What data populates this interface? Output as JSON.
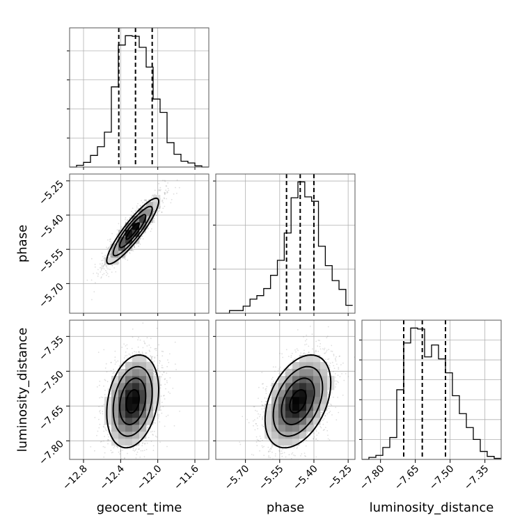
{
  "chart_data": {
    "type": "corner",
    "parameters": [
      "geocent_time",
      "phase",
      "luminosity_distance"
    ],
    "axis_labels": {
      "geocent_time": "geocent_time",
      "phase": "phase",
      "luminosity_distance": "luminosity_distance"
    },
    "ranges": {
      "geocent_time": [
        -12.95,
        -11.45
      ],
      "phase": [
        -5.83,
        -5.22
      ],
      "luminosity_distance": [
        -7.88,
        -7.28
      ]
    },
    "ticks": {
      "geocent_time": [
        -12.8,
        -12.4,
        -12.0,
        -11.6
      ],
      "phase": [
        -5.7,
        -5.55,
        -5.4,
        -5.25
      ],
      "luminosity_distance": [
        -7.8,
        -7.65,
        -7.5,
        -7.35
      ]
    },
    "tick_labels": {
      "geocent_time": [
        "−12.8",
        "−12.4",
        "−12.0",
        "−11.6"
      ],
      "phase": [
        "−5.70",
        "−5.55",
        "−5.40",
        "−5.25"
      ],
      "luminosity_distance": [
        "−7.80",
        "−7.65",
        "−7.50",
        "−7.35"
      ]
    },
    "quantiles": {
      "geocent_time": [
        -12.42,
        -12.24,
        -12.06
      ],
      "phase": [
        -5.52,
        -5.46,
        -5.4
      ],
      "luminosity_distance": [
        -7.7,
        -7.62,
        -7.52
      ]
    },
    "histograms": {
      "geocent_time": {
        "bins": [
          -12.95,
          -12.875,
          -12.8,
          -12.725,
          -12.65,
          -12.575,
          -12.5,
          -12.425,
          -12.35,
          -12.275,
          -12.2,
          -12.125,
          -12.05,
          -11.975,
          -11.9,
          -11.825,
          -11.75,
          -11.675,
          -11.6,
          -11.525,
          -11.45
        ],
        "counts": [
          0,
          3,
          8,
          20,
          35,
          60,
          138,
          210,
          226,
          225,
          206,
          172,
          117,
          94,
          42,
          22,
          10,
          7,
          2,
          0
        ]
      },
      "phase": {
        "bins": [
          -5.83,
          -5.8,
          -5.77,
          -5.74,
          -5.71,
          -5.68,
          -5.65,
          -5.62,
          -5.59,
          -5.56,
          -5.53,
          -5.5,
          -5.47,
          -5.44,
          -5.41,
          -5.38,
          -5.35,
          -5.32,
          -5.29,
          -5.26,
          -5.23
        ],
        "counts": [
          0,
          0,
          3,
          3,
          8,
          16,
          20,
          28,
          43,
          60,
          91,
          131,
          149,
          132,
          127,
          76,
          54,
          37,
          27,
          9
        ]
      },
      "luminosity_distance": {
        "bins": [
          -7.88,
          -7.85,
          -7.82,
          -7.79,
          -7.76,
          -7.73,
          -7.7,
          -7.67,
          -7.64,
          -7.61,
          -7.58,
          -7.55,
          -7.52,
          -7.49,
          -7.46,
          -7.43,
          -7.4,
          -7.37,
          -7.34,
          -7.31,
          -7.28
        ],
        "counts": [
          0,
          2,
          4,
          12,
          22,
          70,
          117,
          132,
          131,
          103,
          115,
          101,
          87,
          64,
          46,
          32,
          20,
          8,
          3,
          1
        ]
      }
    },
    "joint": [
      {
        "x": "geocent_time",
        "y": "phase",
        "center": [
          -12.27,
          -5.47
        ],
        "sigma": [
          0.14,
          0.072
        ],
        "rho": 0.9
      },
      {
        "x": "geocent_time",
        "y": "luminosity_distance",
        "center": [
          -12.27,
          -7.63
        ],
        "sigma": [
          0.14,
          0.1
        ],
        "rho": 0.25
      },
      {
        "x": "phase",
        "y": "luminosity_distance",
        "center": [
          -5.47,
          -7.63
        ],
        "sigma": [
          0.072,
          0.1
        ],
        "rho": 0.4
      }
    ],
    "contour_levels_sigma": [
      0.5,
      1.0,
      1.5,
      2.0
    ],
    "grid": true
  }
}
